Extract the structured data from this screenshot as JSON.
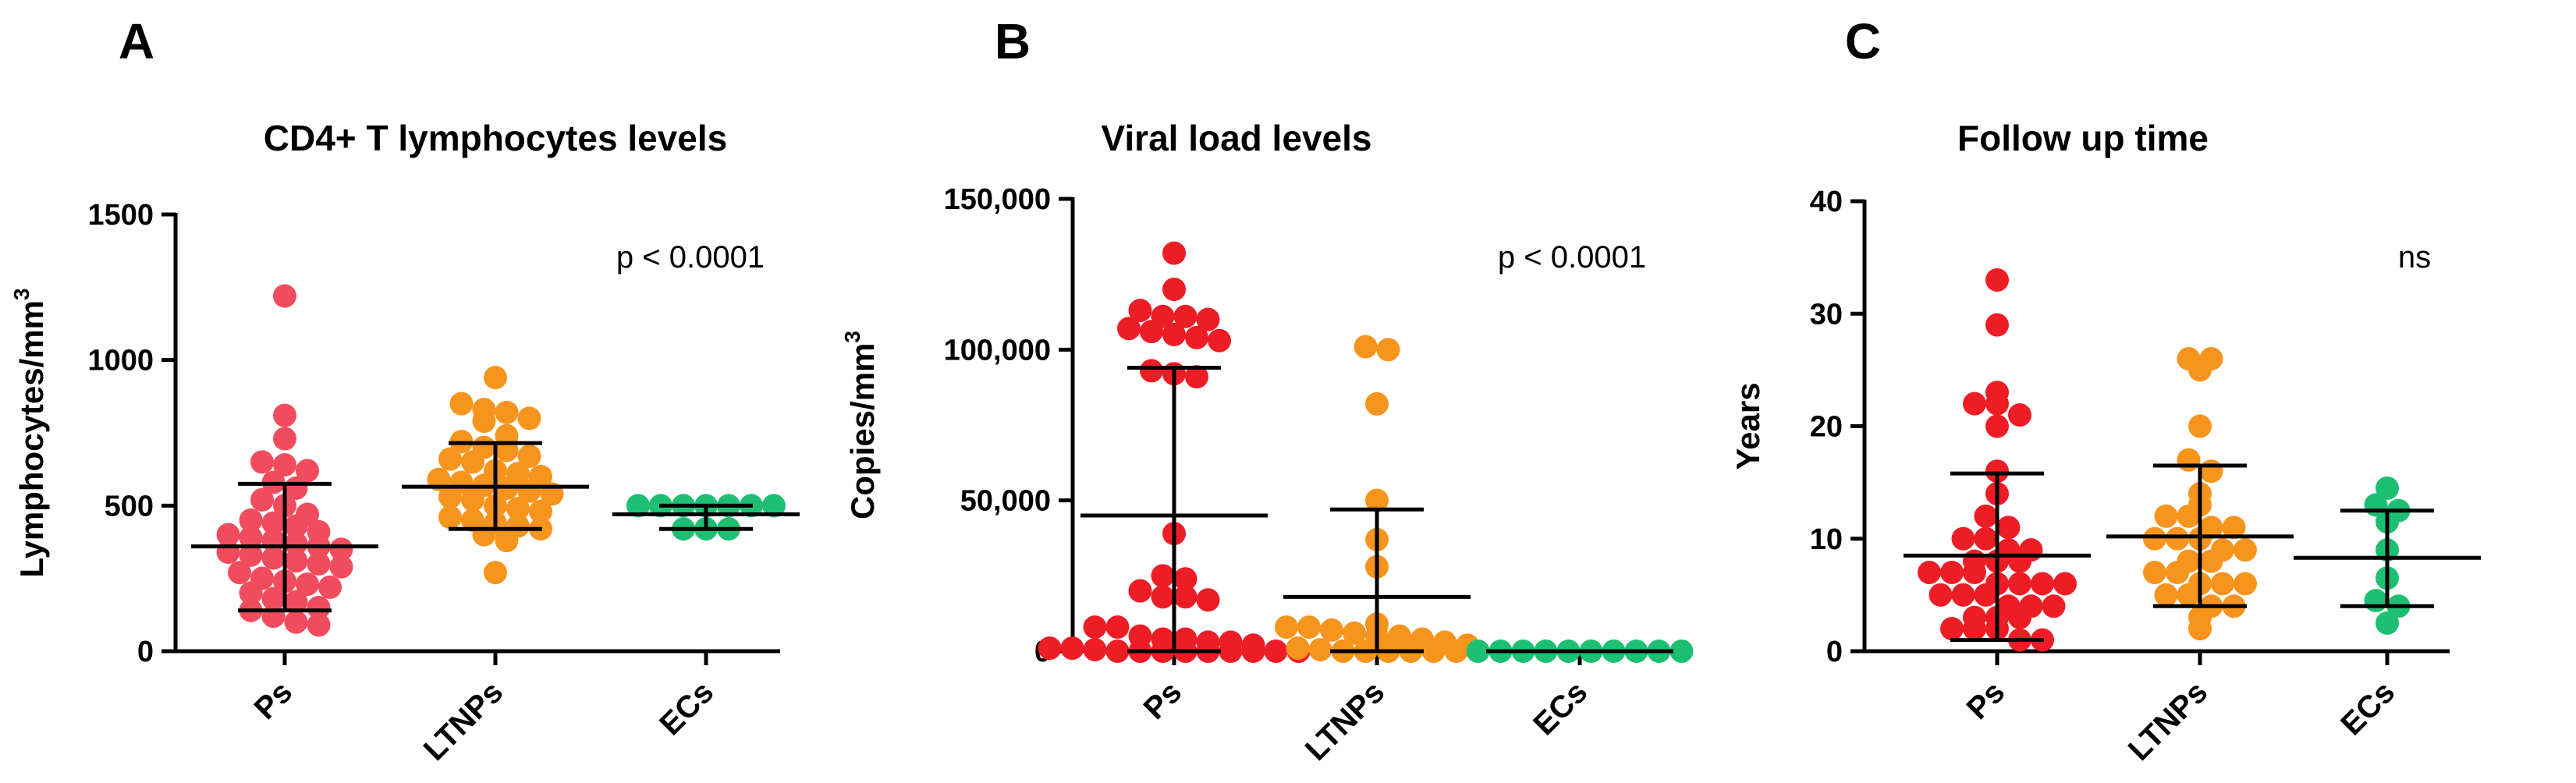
{
  "colors": {
    "Ps": "#ee1c25",
    "LTNPs": "#f7941d",
    "ECs": "#1dbf73",
    "Ps_A": "#f04c5e"
  },
  "chart_data": [
    {
      "type": "scatter",
      "panel_label": "A",
      "title": "CD4+ T lymphocytes levels",
      "ylabel_main": "Lymphocytes/mm",
      "ylabel_sup": "3",
      "ylim": [
        0,
        1500
      ],
      "yticks": [
        0,
        500,
        1000,
        1500
      ],
      "ytick_labels": [
        "0",
        "500",
        "1000",
        "1500"
      ],
      "categories": [
        "Ps",
        "LTNPs",
        "ECs"
      ],
      "annotation": "p < 0.0001",
      "series": [
        {
          "name": "Ps",
          "color_key": "Ps_A",
          "mean": 360,
          "sd_low": 140,
          "sd_high": 575,
          "values": [
            1220,
            810,
            730,
            650,
            640,
            620,
            580,
            560,
            520,
            500,
            470,
            450,
            440,
            430,
            410,
            400,
            390,
            380,
            370,
            360,
            350,
            340,
            330,
            320,
            310,
            300,
            290,
            270,
            250,
            240,
            230,
            220,
            200,
            180,
            170,
            150,
            140,
            120,
            100,
            90
          ]
        },
        {
          "name": "LTNPs",
          "color_key": "LTNPs",
          "mean": 565,
          "sd_low": 420,
          "sd_high": 715,
          "values": [
            940,
            850,
            830,
            820,
            800,
            790,
            740,
            720,
            700,
            690,
            670,
            660,
            650,
            620,
            610,
            600,
            590,
            580,
            570,
            560,
            550,
            540,
            530,
            520,
            500,
            490,
            480,
            460,
            450,
            440,
            430,
            420,
            400,
            380,
            270
          ]
        },
        {
          "name": "ECs",
          "color_key": "ECs",
          "mean": 470,
          "sd_low": 420,
          "sd_high": 500,
          "values": [
            500,
            500,
            500,
            500,
            500,
            500,
            500,
            420,
            420,
            420
          ]
        }
      ]
    },
    {
      "type": "scatter",
      "panel_label": "B",
      "title": "Viral load levels",
      "ylabel_main": "Copies/mm",
      "ylabel_sup": "3",
      "ylim": [
        0,
        150000
      ],
      "yticks": [
        0,
        50000,
        100000,
        150000
      ],
      "ytick_labels": [
        "0",
        "50,000",
        "100,000",
        "150,000"
      ],
      "categories": [
        "Ps",
        "LTNPs",
        "ECs"
      ],
      "annotation": "p < 0.0001",
      "series": [
        {
          "name": "Ps",
          "color_key": "Ps",
          "mean": 45000,
          "sd_low": 0,
          "sd_high": 94000,
          "values": [
            132000,
            120000,
            113000,
            111000,
            111000,
            110000,
            107000,
            106000,
            105000,
            104000,
            103000,
            93000,
            92000,
            91000,
            39000,
            25000,
            24000,
            20000,
            18000,
            18000,
            17000,
            8000,
            8000,
            5000,
            4000,
            4000,
            3000,
            3000,
            2000,
            1000,
            1000,
            500,
            0,
            0,
            0,
            0,
            0,
            0,
            0,
            0,
            0
          ]
        },
        {
          "name": "LTNPs",
          "color_key": "LTNPs",
          "mean": 18000,
          "sd_low": 0,
          "sd_high": 47000,
          "values": [
            101000,
            100000,
            82000,
            50000,
            37000,
            28000,
            9000,
            8000,
            8000,
            7000,
            6000,
            5000,
            5000,
            4000,
            3000,
            2000,
            1000,
            500,
            0,
            0,
            0,
            0,
            0,
            0
          ]
        },
        {
          "name": "ECs",
          "color_key": "ECs",
          "mean": 0,
          "sd_low": 0,
          "sd_high": 0,
          "values": [
            0,
            0,
            0,
            0,
            0,
            0,
            0,
            0,
            0,
            0
          ]
        }
      ]
    },
    {
      "type": "scatter",
      "panel_label": "C",
      "title": "Follow up time",
      "ylabel_main": "Years",
      "ylabel_sup": "",
      "ylim": [
        0,
        40
      ],
      "yticks": [
        0,
        10,
        20,
        30,
        40
      ],
      "ytick_labels": [
        "0",
        "10",
        "20",
        "30",
        "40"
      ],
      "categories": [
        "Ps",
        "LTNPs",
        "ECs"
      ],
      "annotation": "ns",
      "series": [
        {
          "name": "Ps",
          "color_key": "Ps",
          "mean": 8.5,
          "sd_low": 1,
          "sd_high": 15.8,
          "values": [
            33,
            29,
            23,
            22,
            22,
            21,
            20,
            16,
            14,
            12,
            11,
            10,
            10,
            9,
            9,
            8,
            8,
            8,
            7,
            7,
            7,
            6,
            6,
            6,
            6,
            5,
            5,
            5,
            4,
            4,
            4,
            3,
            3,
            3,
            2,
            2,
            2,
            1,
            1
          ]
        },
        {
          "name": "LTNPs",
          "color_key": "LTNPs",
          "mean": 10.2,
          "sd_low": 4,
          "sd_high": 16.5,
          "values": [
            26,
            26,
            25,
            20,
            17,
            16,
            14,
            13,
            12,
            12,
            11,
            11,
            10,
            10,
            10,
            9,
            9,
            8,
            8,
            7,
            7,
            6,
            6,
            6,
            5,
            5,
            4,
            4,
            3,
            2
          ]
        },
        {
          "name": "ECs",
          "color_key": "ECs",
          "mean": 8.3,
          "sd_low": 4,
          "sd_high": 12.5,
          "values": [
            14.5,
            13,
            12.5,
            11.5,
            9,
            6.5,
            4.5,
            4,
            2.5
          ]
        }
      ]
    }
  ]
}
